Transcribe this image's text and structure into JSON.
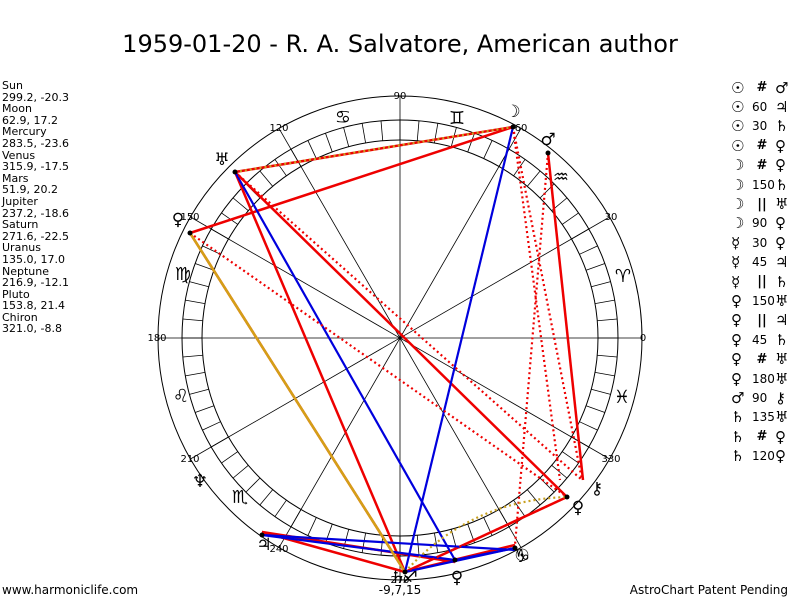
{
  "title": "1959-01-20 - R. A. Salvatore, American author",
  "planets": [
    {
      "name": "Sun",
      "coords": "299.2, -20.3"
    },
    {
      "name": "Moon",
      "coords": "62.9, 17.2"
    },
    {
      "name": "Mercury",
      "coords": "283.5, -23.6"
    },
    {
      "name": "Venus",
      "coords": "315.9, -17.5"
    },
    {
      "name": "Mars",
      "coords": "51.9, 20.2"
    },
    {
      "name": "Jupiter",
      "coords": "237.2, -18.6"
    },
    {
      "name": "Saturn",
      "coords": "271.6, -22.5"
    },
    {
      "name": "Uranus",
      "coords": "135.0, 17.0"
    },
    {
      "name": "Neptune",
      "coords": "216.9, -12.1"
    },
    {
      "name": "Pluto",
      "coords": "153.8, 21.4"
    },
    {
      "name": "Chiron",
      "coords": "321.0, -8.8"
    }
  ],
  "aspects": [
    {
      "p1": "☉",
      "sym": "#",
      "num": false,
      "p2": "♂"
    },
    {
      "p1": "☉",
      "sym": "60",
      "num": true,
      "p2": "♃"
    },
    {
      "p1": "☉",
      "sym": "30",
      "num": true,
      "p2": "♄"
    },
    {
      "p1": "☉",
      "sym": "#",
      "num": false,
      "p2": "♀"
    },
    {
      "p1": "☽",
      "sym": "#",
      "num": false,
      "p2": "♀"
    },
    {
      "p1": "☽",
      "sym": "150",
      "num": true,
      "p2": "♄"
    },
    {
      "p1": "☽",
      "sym": "||",
      "num": false,
      "p2": "♅"
    },
    {
      "p1": "☽",
      "sym": "90",
      "num": true,
      "p2": "♀"
    },
    {
      "p1": "☿",
      "sym": "30",
      "num": true,
      "p2": "♀"
    },
    {
      "p1": "☿",
      "sym": "45",
      "num": true,
      "p2": "♃"
    },
    {
      "p1": "☿",
      "sym": "||",
      "num": false,
      "p2": "♄"
    },
    {
      "p1": "♀",
      "sym": "150",
      "num": true,
      "p2": "♅"
    },
    {
      "p1": "♀",
      "sym": "||",
      "num": false,
      "p2": "♃"
    },
    {
      "p1": "♀",
      "sym": "45",
      "num": true,
      "p2": "♄"
    },
    {
      "p1": "♀",
      "sym": "#",
      "num": false,
      "p2": "♅"
    },
    {
      "p1": "♀",
      "sym": "180",
      "num": true,
      "p2": "♅"
    },
    {
      "p1": "♂",
      "sym": "90",
      "num": true,
      "p2": "⚷"
    },
    {
      "p1": "♄",
      "sym": "135",
      "num": true,
      "p2": "♅"
    },
    {
      "p1": "♄",
      "sym": "#",
      "num": false,
      "p2": "♀"
    },
    {
      "p1": "♄",
      "sym": "120",
      "num": true,
      "p2": "♀"
    }
  ],
  "wheel": {
    "degree_labels": [
      "90",
      "120",
      "150",
      "180",
      "210",
      "240",
      "270",
      "330",
      "30",
      "60",
      "0"
    ],
    "bottom_label": "-9,7,15",
    "signs": [
      "♈",
      "♉",
      "♊",
      "♋",
      "♌",
      "♍",
      "♎",
      "♏",
      "♐",
      "♑",
      "♒",
      "♓"
    ],
    "planet_glyphs": {
      "sun": "☉",
      "moon": "☽",
      "mercury": "☿",
      "venus": "♀",
      "mars": "♂",
      "jupiter": "♃",
      "saturn": "♄",
      "uranus": "♅",
      "neptune": "♆",
      "pluto": "♀",
      "chiron": "⚷"
    }
  },
  "colors": {
    "red": "#ee0000",
    "blue": "#0000dd",
    "gold": "#d4a017",
    "gold_dotted": "#c8a020"
  },
  "footer_left": "www.harmoniclife.com",
  "footer_right": "AstroChart Patent Pending"
}
